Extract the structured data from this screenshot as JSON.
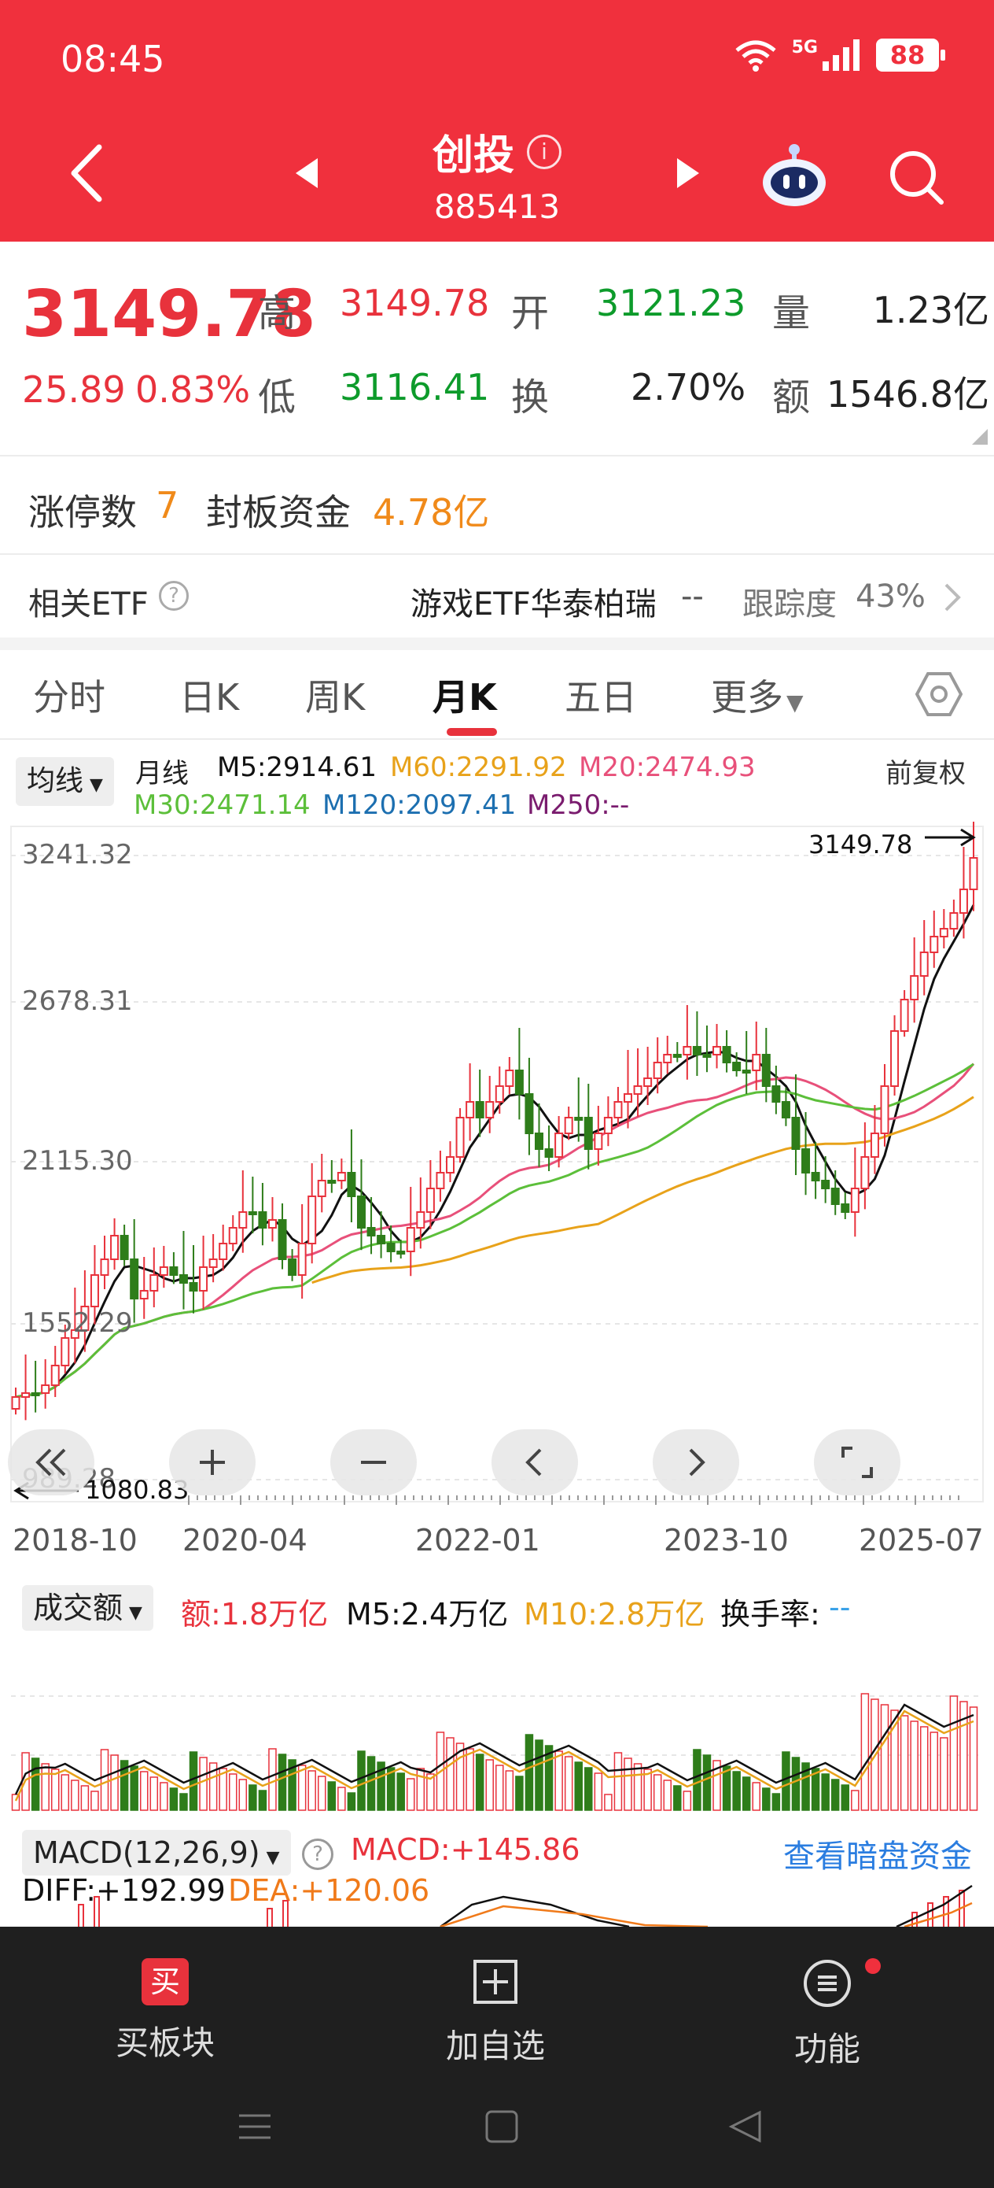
{
  "status": {
    "time": "08:45",
    "network": "5G",
    "battery": "88"
  },
  "header": {
    "title": "创投",
    "code": "885413"
  },
  "quote": {
    "price": "3149.78",
    "change": "25.89",
    "change_pct": "0.83%",
    "high_label": "高",
    "high": "3149.78",
    "open_label": "开",
    "open": "3121.23",
    "volume_label": "量",
    "volume": "1.23亿",
    "low_label": "低",
    "low": "3116.41",
    "turnover_label": "换",
    "turnover": "2.70%",
    "amount_label": "额",
    "amount": "1546.8亿"
  },
  "limit": {
    "count_label": "涨停数",
    "count": "7",
    "fund_label": "封板资金",
    "fund": "4.78亿"
  },
  "etf": {
    "label": "相关ETF",
    "name": "游戏ETF华泰柏瑞",
    "change": "--",
    "track_label": "跟踪度",
    "track": "43%"
  },
  "tabs": [
    "分时",
    "日K",
    "周K",
    "月K",
    "五日",
    "更多"
  ],
  "active_tab": "月K",
  "kline": {
    "selector": "均线",
    "period": "月线",
    "adjust": "前复权",
    "ma": {
      "m5": "M5:2914.61",
      "m60": "M60:2291.92",
      "m20": "M20:2474.93",
      "m30": "M30:2471.14",
      "m120": "M120:2097.41",
      "m250": "M250:--"
    },
    "y_ticks": [
      "3241.32",
      "2678.31",
      "2115.30",
      "1552.29",
      "989.28"
    ],
    "x_ticks": [
      "2018-10",
      "2020-04",
      "2022-01",
      "2023-10",
      "2025-07"
    ],
    "last_price": "3149.78",
    "low_mark": "1080.83"
  },
  "volume_panel": {
    "selector": "成交额",
    "amount": "额:1.8万亿",
    "m5": "M5:2.4万亿",
    "m10": "M10:2.8万亿",
    "turnover_label": "换手率:",
    "turnover": "--"
  },
  "macd_panel": {
    "selector": "MACD(12,26,9)",
    "macd": "MACD:+145.86",
    "diff": "DIFF:+192.99",
    "dea": "DEA:+120.06",
    "link": "查看暗盘资金"
  },
  "bottom_nav": {
    "buy": "买板块",
    "buy_badge": "买",
    "add": "加自选",
    "func": "功能"
  },
  "colors": {
    "up": "#e8323c",
    "down": "#2e7d1a",
    "header": "#f0303d",
    "m5": "#111111",
    "m20": "#e8507a",
    "m30": "#5cbf3a",
    "m60": "#e8a21a",
    "m120": "#1c6fb0",
    "m250": "#7a1c6e"
  },
  "chart_data": {
    "type": "candlestick",
    "y_range": [
      989.28,
      3241.32
    ],
    "x_labels": [
      "2018-10",
      "2020-04",
      "2022-01",
      "2023-10",
      "2025-07"
    ],
    "last_close": 3149.78,
    "period_low": 1080.83,
    "ma_latest": {
      "M5": 2914.61,
      "M20": 2474.93,
      "M30": 2471.14,
      "M60": 2291.92,
      "M120": 2097.41
    },
    "volume_latest": {
      "amount": "1.8万亿",
      "M5": "2.4万亿",
      "M10": "2.8万亿"
    },
    "macd_latest": {
      "DIFF": 192.99,
      "DEA": 120.06,
      "MACD": 145.86
    }
  }
}
